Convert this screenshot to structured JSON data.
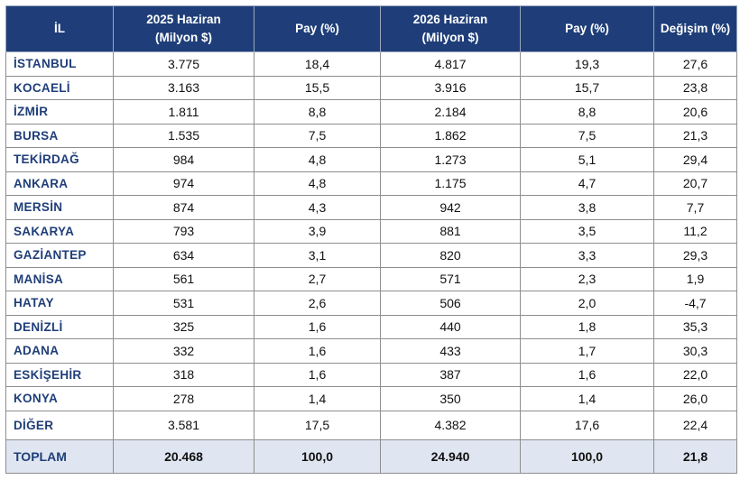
{
  "header": {
    "il": "İL",
    "y2025_line1": "2025 Haziran",
    "y2025_line2": "(Milyon $)",
    "pay1": "Pay (%)",
    "y2026_line1": "2026 Haziran",
    "y2026_line2": "(Milyon $)",
    "pay2": "Pay (%)",
    "degisim": "Değişim (%)"
  },
  "rows": [
    {
      "il": "İSTANBUL",
      "v2025": "3.775",
      "pay2025": "18,4",
      "v2026": "4.817",
      "pay2026": "19,3",
      "degisim": "27,6"
    },
    {
      "il": "KOCAELİ",
      "v2025": "3.163",
      "pay2025": "15,5",
      "v2026": "3.916",
      "pay2026": "15,7",
      "degisim": "23,8"
    },
    {
      "il": "İZMİR",
      "v2025": "1.811",
      "pay2025": "8,8",
      "v2026": "2.184",
      "pay2026": "8,8",
      "degisim": "20,6"
    },
    {
      "il": "BURSA",
      "v2025": "1.535",
      "pay2025": "7,5",
      "v2026": "1.862",
      "pay2026": "7,5",
      "degisim": "21,3"
    },
    {
      "il": "TEKİRDAĞ",
      "v2025": "984",
      "pay2025": "4,8",
      "v2026": "1.273",
      "pay2026": "5,1",
      "degisim": "29,4"
    },
    {
      "il": "ANKARA",
      "v2025": "974",
      "pay2025": "4,8",
      "v2026": "1.175",
      "pay2026": "4,7",
      "degisim": "20,7"
    },
    {
      "il": "MERSİN",
      "v2025": "874",
      "pay2025": "4,3",
      "v2026": "942",
      "pay2026": "3,8",
      "degisim": "7,7"
    },
    {
      "il": "SAKARYA",
      "v2025": "793",
      "pay2025": "3,9",
      "v2026": "881",
      "pay2026": "3,5",
      "degisim": "11,2"
    },
    {
      "il": "GAZİANTEP",
      "v2025": "634",
      "pay2025": "3,1",
      "v2026": "820",
      "pay2026": "3,3",
      "degisim": "29,3"
    },
    {
      "il": "MANİSA",
      "v2025": "561",
      "pay2025": "2,7",
      "v2026": "571",
      "pay2026": "2,3",
      "degisim": "1,9"
    },
    {
      "il": "HATAY",
      "v2025": "531",
      "pay2025": "2,6",
      "v2026": "506",
      "pay2026": "2,0",
      "degisim": "-4,7"
    },
    {
      "il": "DENİZLİ",
      "v2025": "325",
      "pay2025": "1,6",
      "v2026": "440",
      "pay2026": "1,8",
      "degisim": "35,3"
    },
    {
      "il": "ADANA",
      "v2025": "332",
      "pay2025": "1,6",
      "v2026": "433",
      "pay2026": "1,7",
      "degisim": "30,3"
    },
    {
      "il": "ESKİŞEHİR",
      "v2025": "318",
      "pay2025": "1,6",
      "v2026": "387",
      "pay2026": "1,6",
      "degisim": "22,0"
    },
    {
      "il": "KONYA",
      "v2025": "278",
      "pay2025": "1,4",
      "v2026": "350",
      "pay2026": "1,4",
      "degisim": "26,0"
    },
    {
      "il": "DİĞER",
      "v2025": "3.581",
      "pay2025": "17,5",
      "v2026": "4.382",
      "pay2026": "17,6",
      "degisim": "22,4"
    }
  ],
  "total": {
    "il": "TOPLAM",
    "v2025": "20.468",
    "pay2025": "100,0",
    "v2026": "24.940",
    "pay2026": "100,0",
    "degisim": "21,8"
  },
  "colors": {
    "header_bg": "#1f3e79",
    "province_text": "#1f3e79",
    "total_bg": "#dfe6f1"
  }
}
